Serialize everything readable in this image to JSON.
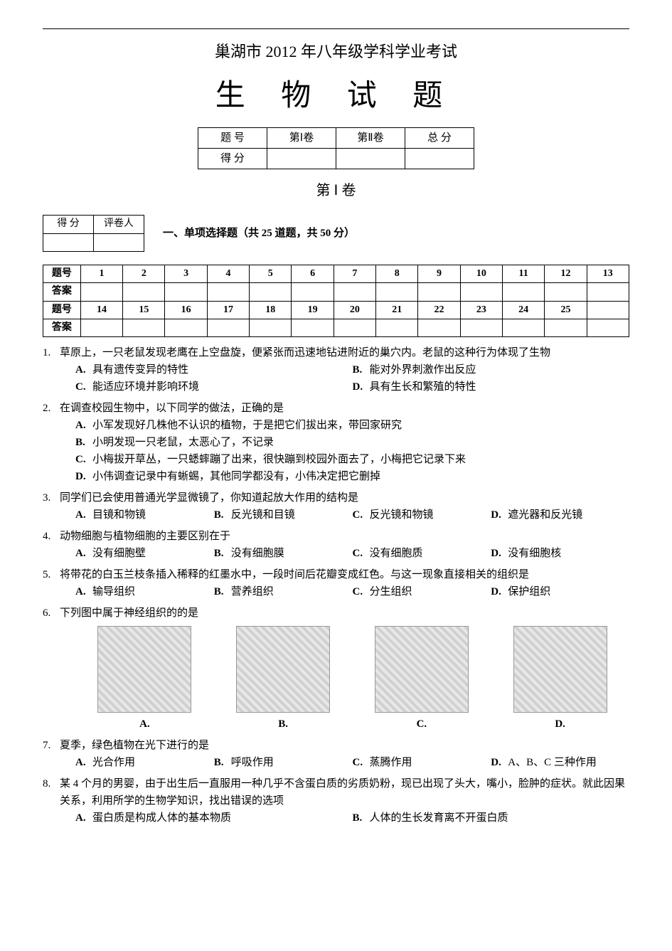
{
  "header": {
    "exam_line": "巢湖市 2012 年八年级学科学业考试",
    "main_title": "生 物 试 题"
  },
  "score_summary": {
    "row1": [
      "题   号",
      "第Ⅰ卷",
      "第Ⅱ卷",
      "总   分"
    ],
    "row2_label": "得   分"
  },
  "section_i_label": "第 Ⅰ 卷",
  "marker": {
    "score_label": "得  分",
    "reviewer_label": "评卷人"
  },
  "part1_instruction": "一、单项选择题（共 25 道题，共 50 分）",
  "answer_grid": {
    "row_labels": [
      "题号",
      "答案",
      "题号",
      "答案"
    ],
    "row1_nums": [
      "1",
      "2",
      "3",
      "4",
      "5",
      "6",
      "7",
      "8",
      "9",
      "10",
      "11",
      "12",
      "13"
    ],
    "row3_nums": [
      "14",
      "15",
      "16",
      "17",
      "18",
      "19",
      "20",
      "21",
      "22",
      "23",
      "24",
      "25",
      ""
    ]
  },
  "questions": [
    {
      "num": "1.",
      "stem": "草原上，一只老鼠发现老鹰在上空盘旋，便紧张而迅速地钻进附近的巢穴内。老鼠的这种行为体现了生物",
      "stem_sub": "",
      "option_layout": "w50",
      "options": [
        {
          "letter": "A.",
          "text": "具有遗传变异的特性"
        },
        {
          "letter": "B.",
          "text": "能对外界刺激作出反应"
        },
        {
          "letter": "C.",
          "text": "能适应环境并影响环境"
        },
        {
          "letter": "D.",
          "text": "具有生长和繁殖的特性"
        }
      ]
    },
    {
      "num": "2.",
      "stem": "在调查校园生物中，以下同学的做法，正确的是",
      "option_layout": "full",
      "options": [
        {
          "letter": "A.",
          "text": "小军发现好几株他不认识的植物，于是把它们拔出来，带回家研究"
        },
        {
          "letter": "B.",
          "text": "小明发现一只老鼠，太恶心了，不记录"
        },
        {
          "letter": "C.",
          "text": "小梅拔开草丛，一只蟋蟀蹦了出来，很快蹦到校园外面去了，小梅把它记录下来"
        },
        {
          "letter": "D.",
          "text": "小伟调查记录中有蜥蜴，其他同学都没有，小伟决定把它删掉"
        }
      ]
    },
    {
      "num": "3.",
      "stem": "同学们已会使用普通光学显微镜了，你知道起放大作用的结构是",
      "option_layout": "w25",
      "options": [
        {
          "letter": "A.",
          "text": "目镜和物镜"
        },
        {
          "letter": "B.",
          "text": "反光镜和目镜"
        },
        {
          "letter": "C.",
          "text": "反光镜和物镜"
        },
        {
          "letter": "D.",
          "text": "遮光器和反光镜"
        }
      ]
    },
    {
      "num": "4.",
      "stem": "动物细胞与植物细胞的主要区别在于",
      "option_layout": "w25",
      "options": [
        {
          "letter": "A.",
          "text": "没有细胞壁"
        },
        {
          "letter": "B.",
          "text": "没有细胞膜"
        },
        {
          "letter": "C.",
          "text": "没有细胞质"
        },
        {
          "letter": "D.",
          "text": "没有细胞核"
        }
      ]
    },
    {
      "num": "5.",
      "stem": "将带花的白玉兰枝条插入稀释的红墨水中，一段时间后花瓣变成红色。与这一现象直接相关的组织是",
      "option_layout": "w25",
      "options": [
        {
          "letter": "A.",
          "text": "输导组织"
        },
        {
          "letter": "B.",
          "text": "营养组织"
        },
        {
          "letter": "C.",
          "text": "分生组织"
        },
        {
          "letter": "D.",
          "text": "保护组织"
        }
      ]
    },
    {
      "num": "6.",
      "stem": "下列图中属于神经组织的的是",
      "option_layout": "images",
      "image_labels": [
        "A.",
        "B.",
        "C.",
        "D."
      ]
    },
    {
      "num": "7.",
      "stem": "夏季，绿色植物在光下进行的是",
      "option_layout": "w25",
      "options": [
        {
          "letter": "A.",
          "text": "光合作用"
        },
        {
          "letter": "B.",
          "text": "呼吸作用"
        },
        {
          "letter": "C.",
          "text": "蒸腾作用"
        },
        {
          "letter": "D.",
          "text": "A、B、C 三种作用"
        }
      ]
    },
    {
      "num": "8.",
      "stem": "某 4 个月的男婴，由于出生后一直服用一种几乎不含蛋白质的劣质奶粉，现已出现了头大，嘴小，脸肿的症状。就此因果关系，利用所学的生物学知识，找出错误的选项",
      "option_layout": "w50",
      "options": [
        {
          "letter": "A.",
          "text": "蛋白质是构成人体的基本物质"
        },
        {
          "letter": "B.",
          "text": "人体的生长发育离不开蛋白质"
        }
      ]
    }
  ]
}
